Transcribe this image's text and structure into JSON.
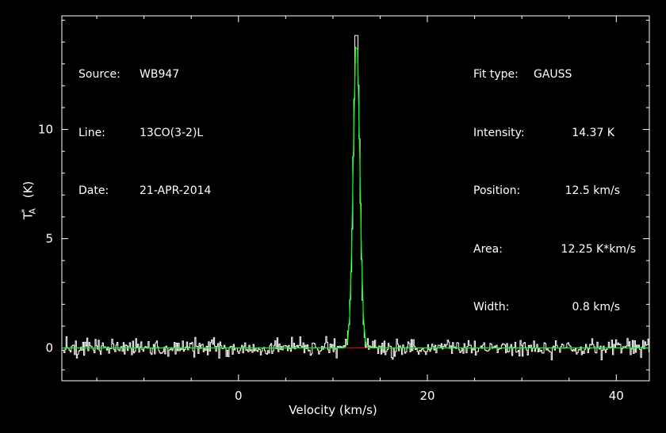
{
  "info": {
    "source_label": "Source:",
    "source_value": "WB947",
    "line_label": "Line:",
    "line_value": "13CO(3-2)L",
    "date_label": "Date:",
    "date_value": "21-APR-2014",
    "fit_type_label": "Fit type:",
    "fit_type_value": "GAUSS",
    "intensity_label": "Intensity:",
    "intensity_value": "14.37 K",
    "position_label": "Position:",
    "position_value": "12.5 km/s",
    "area_label": "Area:",
    "area_value": "12.25 K*km/s",
    "width_label": "Width:",
    "width_value": "0.8 km/s"
  },
  "chart_data": {
    "type": "line",
    "xlabel": "Velocity (km/s)",
    "ylabel": "T",
    "ylabel_sup": "*",
    "ylabel_sub": "A",
    "ylabel_unit": "(K)",
    "xlim": [
      -18.7,
      43.5
    ],
    "ylim": [
      -1.5,
      15.2
    ],
    "x_ticks": [
      0,
      20,
      40
    ],
    "y_ticks": [
      0,
      5,
      10
    ],
    "x_ticks_labels": [
      "0",
      "20",
      "40"
    ],
    "y_ticks_labels": [
      "0",
      "5",
      "10"
    ],
    "colors": {
      "spectrum": "#ffffff",
      "fit": "#00ff00",
      "baseline": "#ff0000",
      "frame": "#ffffff"
    },
    "series": [
      {
        "kind": "spectrum_histogram",
        "channel_width": 0.11,
        "noise_rms": 0.2,
        "peak_observed": 14.3
      },
      {
        "kind": "gaussian_fit",
        "amplitude": 14.37,
        "center": 12.5,
        "fwhm": 0.8
      },
      {
        "kind": "baseline",
        "x_range": [
          11.0,
          14.0
        ],
        "y": 0
      }
    ],
    "grid": false
  }
}
